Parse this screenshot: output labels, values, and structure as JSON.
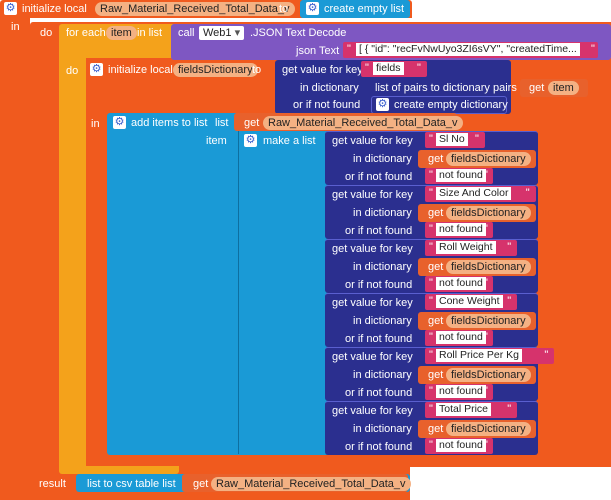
{
  "init_global": {
    "keyword": "initialize local",
    "var_name": "Raw_Material_Received_Total_Data_v",
    "to": "to",
    "create_empty_list": "create empty list",
    "in": "in"
  },
  "do_block": {
    "do": "do",
    "result": "result"
  },
  "for_each": {
    "label": "for each",
    "item_var": "item",
    "in_list": "in list",
    "call": "call",
    "component": "Web1",
    "method": ".JSON Text Decode",
    "json_text_label": "json Text",
    "json_text_value": "[ {  \"id\": \"recFvNwUyo3ZI6sVY\",  \"createdTime...",
    "do": "do"
  },
  "init_fields": {
    "keyword": "initialize local",
    "var_name": "fieldsDictionary",
    "to": "to",
    "get_value_for_key": "get value for key",
    "key": "fields",
    "in_dictionary": "in dictionary",
    "list_of_pairs": "list of pairs to dictionary  pairs",
    "get": "get",
    "get_var": "item",
    "or_if_not_found": "or if not found",
    "create_empty_dictionary": "create empty dictionary",
    "in": "in"
  },
  "add_items": {
    "label": "add items to list",
    "list_label": "list",
    "get": "get",
    "list_var": "Raw_Material_Received_Total_Data_v",
    "item_label": "item",
    "make_a_list": "make a list"
  },
  "lookups": [
    {
      "key": "Sl No"
    },
    {
      "key": "Size And Color"
    },
    {
      "key": "Roll Weight"
    },
    {
      "key": "Cone Weight"
    },
    {
      "key": "Roll Price Per Kg"
    },
    {
      "key": "Total Price"
    }
  ],
  "lookup_labels": {
    "get_value_for_key": "get value for key",
    "in_dictionary": "in dictionary",
    "get": "get",
    "dict_var": "fieldsDictionary",
    "or_if_not_found": "or if not found",
    "not_found": "not found"
  },
  "result": {
    "list_to_csv": "list to csv table  list",
    "get": "get",
    "var_name": "Raw_Material_Received_Total_Data_v"
  },
  "colors": {
    "variables_orange": "#f05a1e",
    "control_yellow": "#f4a21b",
    "lists_blue": "#1a9ad6",
    "dictionary_navy": "#2b2f8f",
    "procedure_purple": "#7e57c2",
    "text_magenta": "#d6336c"
  }
}
